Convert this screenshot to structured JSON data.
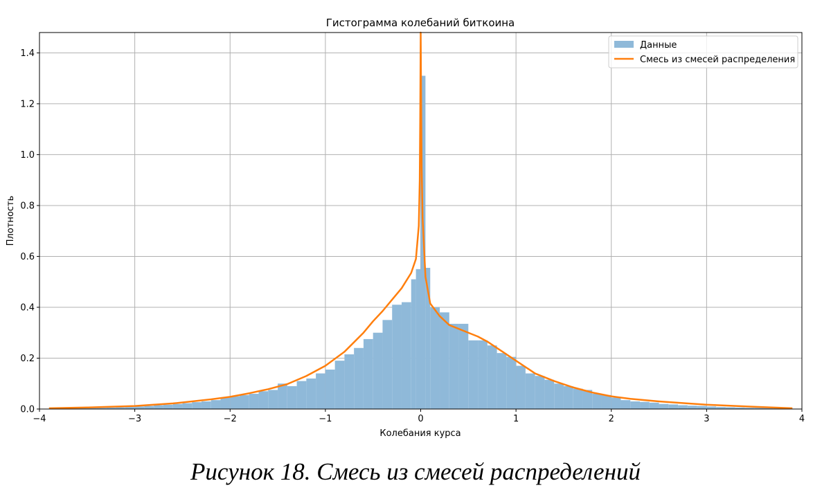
{
  "chart_data": {
    "type": "bar",
    "title": "Гистограмма колебаний биткоина",
    "xlabel": "Колебания курса",
    "ylabel": "Плотность",
    "xlim": [
      -4,
      4
    ],
    "ylim": [
      0,
      1.48
    ],
    "xticks": [
      -4,
      -3,
      -2,
      -1,
      0,
      1,
      2,
      3,
      4
    ],
    "xtick_labels": [
      "−4",
      "−3",
      "−2",
      "−1",
      "0",
      "1",
      "2",
      "3",
      "4"
    ],
    "yticks": [
      0.0,
      0.2,
      0.4,
      0.6,
      0.8,
      1.0,
      1.2,
      1.4
    ],
    "ytick_labels": [
      "0.0",
      "0.2",
      "0.4",
      "0.6",
      "0.8",
      "1.0",
      "1.2",
      "1.4"
    ],
    "grid": true,
    "legend_position": "top-right",
    "histogram": {
      "name": "Данные",
      "color": "#8fb9d9",
      "bin_edges": [
        -3.9,
        -3.8,
        -3.7,
        -3.6,
        -3.5,
        -3.4,
        -3.3,
        -3.2,
        -3.1,
        -3.0,
        -2.9,
        -2.8,
        -2.7,
        -2.6,
        -2.5,
        -2.4,
        -2.3,
        -2.2,
        -2.1,
        -2.0,
        -1.9,
        -1.8,
        -1.7,
        -1.6,
        -1.5,
        -1.4,
        -1.3,
        -1.2,
        -1.1,
        -1.0,
        -0.9,
        -0.8,
        -0.7,
        -0.6,
        -0.5,
        -0.4,
        -0.3,
        -0.2,
        -0.1,
        -0.05,
        0.0,
        0.05,
        0.1,
        0.2,
        0.3,
        0.4,
        0.5,
        0.6,
        0.7,
        0.8,
        0.9,
        1.0,
        1.1,
        1.2,
        1.3,
        1.4,
        1.5,
        1.6,
        1.7,
        1.8,
        1.9,
        2.0,
        2.1,
        2.2,
        2.3,
        2.4,
        2.5,
        2.6,
        2.7,
        2.8,
        2.9,
        3.0,
        3.1,
        3.2,
        3.3,
        3.4,
        3.5,
        3.6,
        3.7,
        3.8,
        3.9
      ],
      "densities": [
        0.003,
        0.003,
        0.004,
        0.004,
        0.005,
        0.005,
        0.006,
        0.007,
        0.008,
        0.01,
        0.012,
        0.015,
        0.017,
        0.02,
        0.023,
        0.027,
        0.03,
        0.035,
        0.045,
        0.05,
        0.055,
        0.06,
        0.07,
        0.075,
        0.1,
        0.09,
        0.11,
        0.12,
        0.14,
        0.155,
        0.19,
        0.215,
        0.24,
        0.275,
        0.3,
        0.35,
        0.41,
        0.42,
        0.51,
        0.55,
        1.31,
        0.555,
        0.4,
        0.38,
        0.335,
        0.335,
        0.27,
        0.27,
        0.25,
        0.22,
        0.205,
        0.17,
        0.14,
        0.13,
        0.115,
        0.1,
        0.09,
        0.08,
        0.075,
        0.06,
        0.055,
        0.045,
        0.035,
        0.03,
        0.028,
        0.025,
        0.02,
        0.018,
        0.015,
        0.013,
        0.012,
        0.01,
        0.008,
        0.007,
        0.006,
        0.005,
        0.005,
        0.004,
        0.003,
        0.003
      ]
    },
    "series": [
      {
        "name": "Смесь из смесей распределения",
        "type": "line",
        "color": "#ff7f0e",
        "x": [
          -3.9,
          -3.5,
          -3.0,
          -2.6,
          -2.2,
          -2.0,
          -1.8,
          -1.6,
          -1.4,
          -1.2,
          -1.0,
          -0.8,
          -0.6,
          -0.5,
          -0.4,
          -0.3,
          -0.2,
          -0.1,
          -0.05,
          -0.02,
          -0.01,
          -0.005,
          0.0,
          0.005,
          0.01,
          0.02,
          0.05,
          0.1,
          0.2,
          0.3,
          0.4,
          0.5,
          0.6,
          0.7,
          0.8,
          1.0,
          1.2,
          1.4,
          1.6,
          1.8,
          2.0,
          2.2,
          2.5,
          2.8,
          3.0,
          3.5,
          3.9
        ],
        "y": [
          0.003,
          0.006,
          0.012,
          0.022,
          0.038,
          0.048,
          0.062,
          0.078,
          0.098,
          0.13,
          0.17,
          0.225,
          0.3,
          0.345,
          0.385,
          0.43,
          0.475,
          0.535,
          0.59,
          0.72,
          0.9,
          1.15,
          1.48,
          1.2,
          0.95,
          0.75,
          0.52,
          0.415,
          0.365,
          0.33,
          0.315,
          0.3,
          0.285,
          0.265,
          0.24,
          0.19,
          0.14,
          0.11,
          0.085,
          0.065,
          0.05,
          0.04,
          0.03,
          0.022,
          0.017,
          0.009,
          0.003
        ]
      }
    ]
  },
  "caption": "Рисунок 18. Смесь из смесей распределений"
}
